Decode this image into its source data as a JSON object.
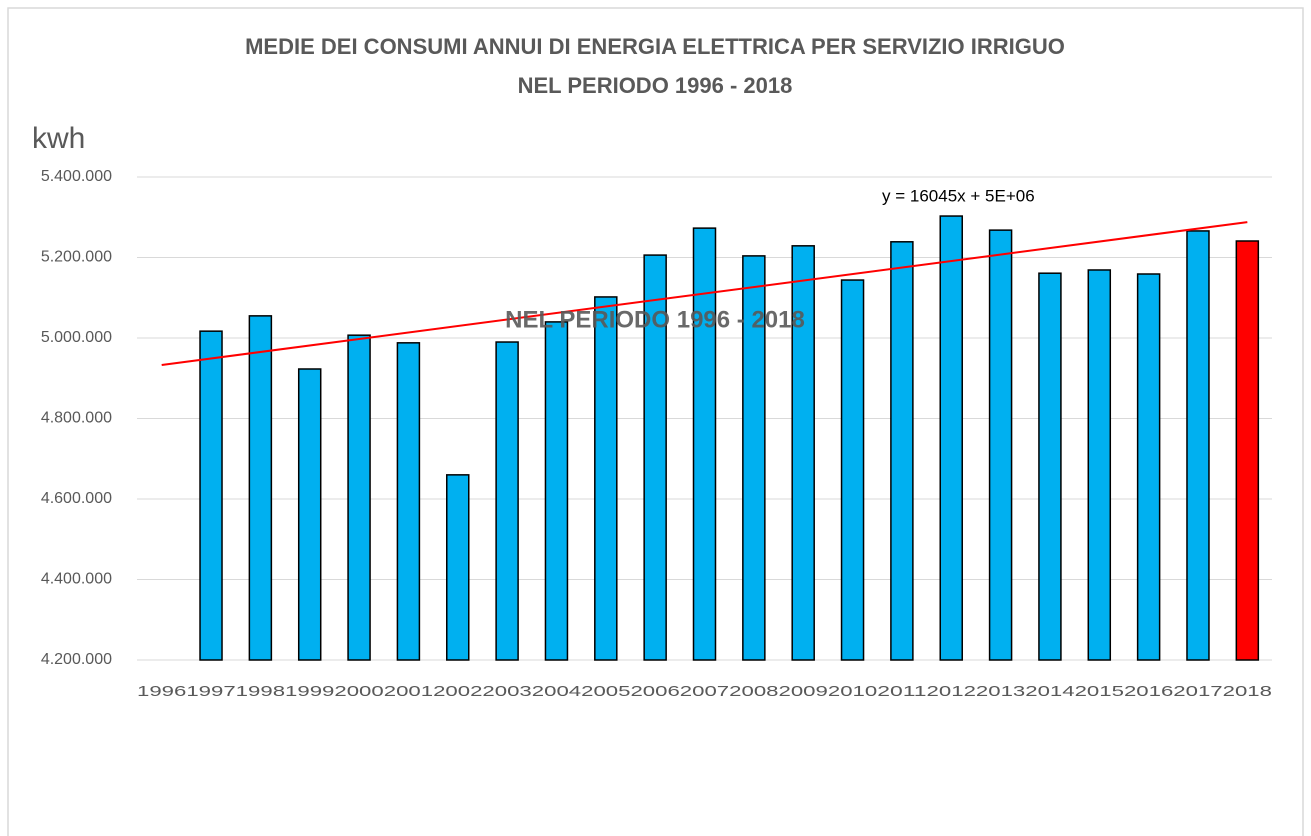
{
  "chart_data": {
    "type": "bar",
    "title": "MEDIE DEI CONSUMI ANNUI DI ENERGIA ELETTRICA PER SERVIZIO IRRIGUO",
    "subtitle": "NEL PERIODO 1996 - 2018",
    "y_label": "kwh",
    "annotation": "NEL PERIODO 1996 - 2018",
    "categories": [
      "1996",
      "1997",
      "1998",
      "1999",
      "2000",
      "2001",
      "2002",
      "2003",
      "2004",
      "2005",
      "2006",
      "2007",
      "2008",
      "2009",
      "2010",
      "2011",
      "2012",
      "2013",
      "2014",
      "2015",
      "2016",
      "2017",
      "2018"
    ],
    "values": [
      null,
      5017000,
      5055000,
      4923000,
      5007000,
      4988000,
      4660000,
      4990000,
      5040000,
      5102000,
      5206000,
      5273000,
      5204000,
      5229000,
      5144000,
      5239000,
      5303000,
      5268000,
      5161000,
      5169000,
      5159000,
      5266000,
      5241000
    ],
    "colors": [
      "#00b0f0",
      "#00b0f0",
      "#00b0f0",
      "#00b0f0",
      "#00b0f0",
      "#00b0f0",
      "#00b0f0",
      "#00b0f0",
      "#00b0f0",
      "#00b0f0",
      "#00b0f0",
      "#00b0f0",
      "#00b0f0",
      "#00b0f0",
      "#00b0f0",
      "#00b0f0",
      "#00b0f0",
      "#00b0f0",
      "#00b0f0",
      "#00b0f0",
      "#00b0f0",
      "#00b0f0",
      "#ff0000"
    ],
    "trendline": {
      "label": "y = 16045x + 5E+06",
      "color": "#ff0000",
      "start": 4933000,
      "end": 5288000
    },
    "ylim": [
      4200000,
      5400000
    ],
    "yticks": [
      {
        "value": 4200000,
        "label": "4.200.000"
      },
      {
        "value": 4400000,
        "label": "4.400.000"
      },
      {
        "value": 4600000,
        "label": "4.600.000"
      },
      {
        "value": 4800000,
        "label": "4.800.000"
      },
      {
        "value": 5000000,
        "label": "5.000.000"
      },
      {
        "value": 5200000,
        "label": "5.200.000"
      },
      {
        "value": 5400000,
        "label": "5.400.000"
      }
    ],
    "grid": true
  }
}
